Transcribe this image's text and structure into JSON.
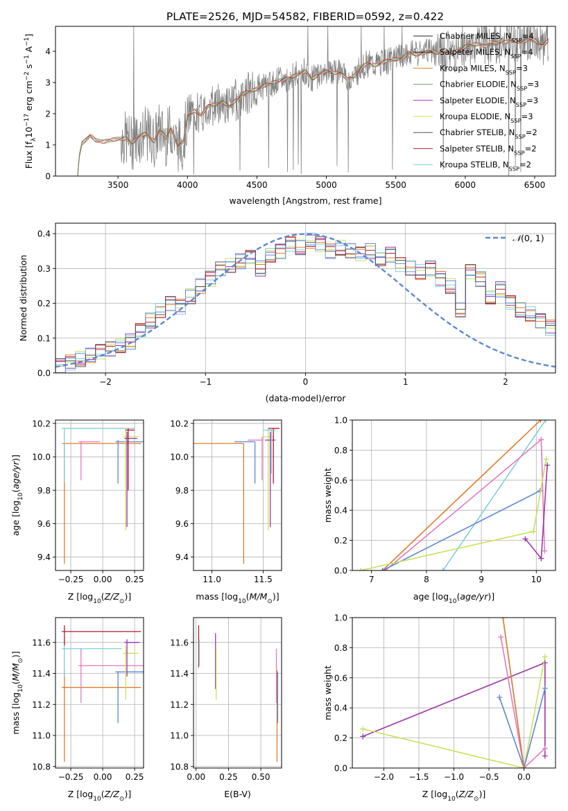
{
  "figure": {
    "title": "PLATE=2526, MJD=54582, FIBERID=0592, z=0.422"
  },
  "colors": {
    "chabrier_miles": "#1f1f1f",
    "salpeter_miles": "#1f1f1f",
    "kroupa_miles": "#e07b2a",
    "chabrier_elodie": "#6b9e6b",
    "salpeter_elodie": "#9b34a8",
    "kroupa_elodie": "#c8e05a",
    "chabrier_stelib": "#505050",
    "salpeter_stelib": "#b2182b",
    "kroupa_stelib": "#7ecfd6",
    "blue": "#5b86d6",
    "pink": "#e377c2",
    "data_grey": "#7f7f7f"
  },
  "chart_data": [
    {
      "id": "spectrum",
      "type": "line",
      "xlabel": "wavelength [Angstrom, rest frame]",
      "ylabel": "Flux [f",
      "ylabel_parts": [
        "Flux [f",
        "λ",
        "10",
        "−17",
        " erg cm",
        "−2",
        " s",
        "−1",
        " A",
        "−1",
        "]"
      ],
      "xlim": [
        3050,
        6650
      ],
      "ylim": [
        0,
        4.8
      ],
      "xticks": [
        3500,
        4000,
        4500,
        5000,
        5500,
        6000,
        6500
      ],
      "yticks": [
        0,
        1,
        2,
        3,
        4
      ],
      "legend": [
        {
          "label": "Chabrier MILES, N",
          "sub": "SSP",
          "suffix": "=4",
          "color_key": "chabrier_miles"
        },
        {
          "label": "Salpeter MILES, N",
          "sub": "SSP",
          "suffix": "=4",
          "color_key": "salpeter_miles"
        },
        {
          "label": "Kroupa MILES, N",
          "sub": "SSP",
          "suffix": "=3",
          "color_key": "kroupa_miles"
        },
        {
          "label": "Chabrier ELODIE, N",
          "sub": "SSP",
          "suffix": "=3",
          "color_key": "chabrier_elodie"
        },
        {
          "label": "Salpeter ELODIE, N",
          "sub": "SSP",
          "suffix": "=3",
          "color_key": "salpeter_elodie"
        },
        {
          "label": "Kroupa ELODIE, N",
          "sub": "SSP",
          "suffix": "=3",
          "color_key": "kroupa_elodie"
        },
        {
          "label": "Chabrier STELIB, N",
          "sub": "SSP",
          "suffix": "=2",
          "color_key": "chabrier_stelib"
        },
        {
          "label": "Salpeter STELIB, N",
          "sub": "SSP",
          "suffix": "=2",
          "color_key": "salpeter_stelib"
        },
        {
          "label": "Kroupa STELIB, N",
          "sub": "SSP",
          "suffix": "=2",
          "color_key": "kroupa_stelib"
        }
      ],
      "model_continuum": [
        [
          3210,
          0
        ],
        [
          3220,
          0.6
        ],
        [
          3240,
          1.05
        ],
        [
          3280,
          1.2
        ],
        [
          3300,
          1.3
        ],
        [
          3340,
          1.15
        ],
        [
          3400,
          1.1
        ],
        [
          3500,
          1.2
        ],
        [
          3560,
          1.2
        ],
        [
          3600,
          1.05
        ],
        [
          3650,
          1.3
        ],
        [
          3700,
          1.35
        ],
        [
          3760,
          1.1
        ],
        [
          3800,
          1.5
        ],
        [
          3850,
          1.2
        ],
        [
          3880,
          1.55
        ],
        [
          3930,
          1.0
        ],
        [
          3970,
          1.1
        ],
        [
          4000,
          1.9
        ],
        [
          4050,
          2.1
        ],
        [
          4100,
          1.95
        ],
        [
          4150,
          2.25
        ],
        [
          4200,
          2.3
        ],
        [
          4250,
          2.4
        ],
        [
          4300,
          2.2
        ],
        [
          4350,
          2.45
        ],
        [
          4400,
          2.65
        ],
        [
          4450,
          2.7
        ],
        [
          4500,
          2.8
        ],
        [
          4550,
          2.9
        ],
        [
          4600,
          2.95
        ],
        [
          4650,
          3.05
        ],
        [
          4700,
          3.1
        ],
        [
          4750,
          3.15
        ],
        [
          4800,
          3.3
        ],
        [
          4850,
          3.35
        ],
        [
          4900,
          3.1
        ],
        [
          4950,
          3.3
        ],
        [
          5000,
          3.35
        ],
        [
          5050,
          3.3
        ],
        [
          5100,
          3.35
        ],
        [
          5150,
          3.1
        ],
        [
          5200,
          3.2
        ],
        [
          5250,
          3.5
        ],
        [
          5300,
          3.6
        ],
        [
          5350,
          3.55
        ],
        [
          5400,
          3.65
        ],
        [
          5450,
          3.7
        ],
        [
          5500,
          3.75
        ],
        [
          5550,
          3.8
        ],
        [
          5600,
          3.95
        ],
        [
          5650,
          3.9
        ],
        [
          5700,
          3.95
        ],
        [
          5750,
          4.0
        ],
        [
          5800,
          3.95
        ],
        [
          5850,
          4.05
        ],
        [
          5900,
          3.9
        ],
        [
          5950,
          4.05
        ],
        [
          6000,
          4.15
        ],
        [
          6050,
          4.2
        ],
        [
          6100,
          4.25
        ],
        [
          6150,
          4.15
        ],
        [
          6200,
          4.25
        ],
        [
          6250,
          4.3
        ],
        [
          6300,
          4.3
        ],
        [
          6350,
          4.35
        ],
        [
          6400,
          4.3
        ],
        [
          6450,
          4.35
        ],
        [
          6500,
          4.35
        ],
        [
          6560,
          4.2
        ],
        [
          6600,
          4.35
        ]
      ]
    },
    {
      "id": "residuals",
      "type": "histogram",
      "xlabel": "(data-model)/error",
      "ylabel": "Normed distribution",
      "xlim": [
        -2.5,
        2.5
      ],
      "ylim": [
        0,
        0.43
      ],
      "xticks": [
        -2,
        -1,
        0,
        1,
        2
      ],
      "yticks": [
        0.0,
        0.1,
        0.2,
        0.3,
        0.4
      ],
      "legend": [
        {
          "label": "𝒩(0, 1)",
          "color_key": "blue"
        }
      ],
      "bin_width": 0.1,
      "hist_series_colors": [
        "kroupa_miles",
        "salpeter_elodie",
        "kroupa_elodie",
        "salpeter_stelib",
        "kroupa_stelib",
        "blue",
        "chabrier_stelib"
      ],
      "hist_values": [
        0.02,
        0.03,
        0.04,
        0.05,
        0.06,
        0.07,
        0.08,
        0.09,
        0.12,
        0.15,
        0.18,
        0.2,
        0.19,
        0.22,
        0.25,
        0.27,
        0.3,
        0.31,
        0.32,
        0.33,
        0.3,
        0.34,
        0.35,
        0.37,
        0.36,
        0.38,
        0.37,
        0.35,
        0.36,
        0.35,
        0.34,
        0.35,
        0.33,
        0.34,
        0.31,
        0.3,
        0.29,
        0.3,
        0.27,
        0.25,
        0.18,
        0.29,
        0.27,
        0.22,
        0.24,
        0.2,
        0.18,
        0.17,
        0.15,
        0.13
      ]
    },
    {
      "id": "age_vs_Z",
      "type": "scatter",
      "xlabel": "Z [log",
      "xlabel_parts": [
        "Z [log",
        "10",
        "(Z/Z",
        "⊙",
        ")]"
      ],
      "ylabel_parts": [
        "age  [log",
        "10",
        "(age/yr)]"
      ],
      "xlim": [
        -0.37,
        0.32
      ],
      "ylim": [
        9.32,
        10.22
      ],
      "xticks": [
        -0.25,
        0.0,
        0.25
      ],
      "xtick_labels": [
        "−0.25",
        "0.00",
        "0.25"
      ],
      "yticks": [
        9.4,
        9.6,
        9.8,
        10.0,
        10.2
      ],
      "points": [
        {
          "x": -0.3,
          "y": 10.08,
          "xerr": 0.6,
          "ylo": 9.36,
          "yhi": 10.08,
          "color_key": "kroupa_miles"
        },
        {
          "x": -0.3,
          "y": 10.17,
          "xerr": 0.55,
          "ylo": 9.85,
          "yhi": 10.17,
          "color_key": "kroupa_stelib"
        },
        {
          "x": -0.17,
          "y": 10.09,
          "xerr": 0.15,
          "ylo": 9.86,
          "yhi": 10.09,
          "color_key": "pink"
        },
        {
          "x": 0.12,
          "y": 10.09,
          "xerr": 0.2,
          "ylo": 9.84,
          "yhi": 10.1,
          "color_key": "blue"
        },
        {
          "x": 0.18,
          "y": 10.12,
          "xerr": 0.1,
          "ylo": 9.56,
          "yhi": 10.17,
          "color_key": "kroupa_elodie"
        },
        {
          "x": 0.19,
          "y": 10.11,
          "xerr": 0.08,
          "ylo": 9.58,
          "yhi": 10.15,
          "color_key": "salpeter_elodie"
        },
        {
          "x": 0.2,
          "y": 10.16,
          "xerr": 0.05,
          "ylo": 9.8,
          "yhi": 10.17,
          "color_key": "salpeter_stelib"
        }
      ]
    },
    {
      "id": "age_vs_mass",
      "type": "scatter",
      "xlabel_parts": [
        "mass [log",
        "10",
        "(M/M",
        "⊙",
        ")]"
      ],
      "xlim": [
        10.82,
        11.68
      ],
      "ylim": [
        9.32,
        10.22
      ],
      "xticks": [
        11.0,
        11.5
      ],
      "xtick_labels": [
        "11.0",
        "11.5"
      ],
      "yticks": [
        9.4,
        9.6,
        9.8,
        10.0,
        10.2
      ],
      "points": [
        {
          "x": 11.31,
          "y": 10.08,
          "xlo": 10.82,
          "xhi": 11.31,
          "ylo": 9.36,
          "yhi": 10.08,
          "color_key": "kroupa_miles"
        },
        {
          "x": 11.42,
          "y": 10.09,
          "xlo": 11.22,
          "xhi": 11.42,
          "ylo": 9.84,
          "yhi": 10.09,
          "color_key": "blue"
        },
        {
          "x": 11.49,
          "y": 10.1,
          "xlo": 11.35,
          "xhi": 11.5,
          "ylo": 9.86,
          "yhi": 10.12,
          "color_key": "pink"
        },
        {
          "x": 11.55,
          "y": 10.12,
          "xlo": 11.5,
          "xhi": 11.6,
          "ylo": 9.56,
          "yhi": 10.17,
          "color_key": "kroupa_elodie"
        },
        {
          "x": 11.57,
          "y": 10.1,
          "xlo": 11.52,
          "xhi": 11.62,
          "ylo": 9.58,
          "yhi": 10.15,
          "color_key": "salpeter_elodie"
        },
        {
          "x": 11.6,
          "y": 10.17,
          "xlo": 11.55,
          "xhi": 11.66,
          "ylo": 9.84,
          "yhi": 10.17,
          "color_key": "salpeter_stelib"
        },
        {
          "x": 11.58,
          "y": 10.16,
          "xlo": 11.5,
          "xhi": 11.62,
          "ylo": 9.9,
          "yhi": 10.17,
          "color_key": "kroupa_stelib"
        }
      ]
    },
    {
      "id": "weight_vs_age",
      "type": "line",
      "xlabel_parts": [
        "age  [log",
        "10",
        "(age/yr)]"
      ],
      "ylabel": "mass weight",
      "xlim": [
        6.65,
        10.35
      ],
      "ylim": [
        0,
        1.0
      ],
      "xticks": [
        7,
        8,
        9,
        10
      ],
      "yticks": [
        0.0,
        0.2,
        0.4,
        0.6,
        0.8,
        1.0
      ],
      "series": [
        {
          "color_key": "kroupa_miles",
          "x": [
            7.2,
            10.08
          ],
          "y": [
            0.0,
            1.0
          ]
        },
        {
          "color_key": "kroupa_stelib",
          "x": [
            8.3,
            10.17
          ],
          "y": [
            0.0,
            1.0
          ]
        },
        {
          "color_key": "pink",
          "x": [
            7.25,
            10.09,
            10.15
          ],
          "y": [
            0.0,
            0.87,
            0.13
          ]
        },
        {
          "color_key": "blue",
          "x": [
            7.2,
            10.07
          ],
          "y": [
            0.0,
            0.53
          ]
        },
        {
          "color_key": "kroupa_elodie",
          "x": [
            6.8,
            9.95,
            10.18
          ],
          "y": [
            0.0,
            0.26,
            0.74
          ]
        },
        {
          "color_key": "salpeter_elodie",
          "x": [
            9.8,
            10.09,
            10.2
          ],
          "y": [
            0.21,
            0.08,
            0.7
          ]
        }
      ]
    },
    {
      "id": "mass_vs_Z",
      "type": "scatter",
      "xlabel_parts": [
        "Z [log",
        "10",
        "(Z/Z",
        "⊙",
        ")]"
      ],
      "ylabel_parts": [
        "mass [log",
        "10",
        "(M/M",
        "⊙",
        ")]"
      ],
      "xlim": [
        -0.37,
        0.32
      ],
      "ylim": [
        10.79,
        11.76
      ],
      "xticks": [
        -0.25,
        0.0,
        0.25
      ],
      "xtick_labels": [
        "−0.25",
        "0.00",
        "0.25"
      ],
      "yticks": [
        10.8,
        11.0,
        11.2,
        11.4,
        11.6
      ],
      "points": [
        {
          "x": -0.3,
          "y": 11.31,
          "xerr": 0.6,
          "ylo": 10.83,
          "yhi": 11.42,
          "color_key": "kroupa_miles"
        },
        {
          "x": -0.3,
          "y": 11.56,
          "xerr": 0.45,
          "ylo": 11.38,
          "yhi": 11.63,
          "color_key": "kroupa_stelib"
        },
        {
          "x": -0.17,
          "y": 11.45,
          "xerr": 0.6,
          "ylo": 11.21,
          "yhi": 11.56,
          "color_key": "pink"
        },
        {
          "x": 0.12,
          "y": 11.41,
          "xerr": 0.3,
          "ylo": 11.08,
          "yhi": 11.41,
          "color_key": "blue"
        },
        {
          "x": 0.18,
          "y": 11.53,
          "xerr": 0.1,
          "ylo": 11.23,
          "yhi": 11.58,
          "color_key": "kroupa_elodie"
        },
        {
          "x": 0.19,
          "y": 11.6,
          "xerr": 0.1,
          "ylo": 11.38,
          "yhi": 11.62,
          "color_key": "salpeter_elodie"
        },
        {
          "x": -0.3,
          "y": 11.67,
          "xerr": 0.6,
          "ylo": 11.58,
          "yhi": 11.71,
          "color_key": "salpeter_stelib"
        }
      ]
    },
    {
      "id": "mass_vs_ebv",
      "type": "scatter",
      "xlabel": "E(B-V)",
      "xlim": [
        -0.02,
        0.66
      ],
      "ylim": [
        10.79,
        11.76
      ],
      "xticks": [
        0.0,
        0.25,
        0.5
      ],
      "xtick_labels": [
        "0.00",
        "0.25",
        "0.50"
      ],
      "yticks": [
        10.8,
        11.0,
        11.2,
        11.4,
        11.6
      ],
      "points": [
        {
          "x": 0.02,
          "ylo": 11.44,
          "yhi": 11.71,
          "color_key": "salpeter_stelib"
        },
        {
          "x": 0.025,
          "ylo": 11.45,
          "yhi": 11.62,
          "color_key": "kroupa_stelib"
        },
        {
          "x": 0.15,
          "ylo": 11.3,
          "yhi": 11.66,
          "color_key": "salpeter_elodie"
        },
        {
          "x": 0.155,
          "ylo": 11.23,
          "yhi": 11.57,
          "color_key": "kroupa_elodie"
        },
        {
          "x": 0.62,
          "ylo": 11.21,
          "yhi": 11.56,
          "color_key": "pink"
        },
        {
          "x": 0.625,
          "ylo": 10.83,
          "yhi": 11.42,
          "color_key": "kroupa_miles"
        },
        {
          "x": 0.63,
          "ylo": 11.08,
          "yhi": 11.41,
          "color_key": "blue"
        }
      ]
    },
    {
      "id": "weight_vs_Z",
      "type": "line",
      "xlabel_parts": [
        "Z [log",
        "10",
        "(Z/Z",
        "⊙",
        ")]"
      ],
      "ylabel": "mass weight",
      "xlim": [
        -2.45,
        0.45
      ],
      "ylim": [
        0,
        1.0
      ],
      "xticks": [
        -2.0,
        -1.5,
        -1.0,
        -0.5,
        0.0
      ],
      "xtick_labels": [
        "−2.0",
        "−1.5",
        "−1.0",
        "−0.5",
        "0.0"
      ],
      "yticks": [
        0.0,
        0.2,
        0.4,
        0.6,
        0.8,
        1.0
      ],
      "series": [
        {
          "color_key": "salpeter_elodie",
          "x": [
            -2.3,
            0.3,
            0.3
          ],
          "y": [
            0.21,
            0.7,
            0.08
          ]
        },
        {
          "color_key": "kroupa_elodie",
          "x": [
            -2.3,
            0.0,
            0.3
          ],
          "y": [
            0.26,
            0.0,
            0.74
          ]
        },
        {
          "color_key": "kroupa_stelib",
          "x": [
            -0.3,
            0.0
          ],
          "y": [
            1.0,
            0.0
          ]
        },
        {
          "color_key": "pink",
          "x": [
            -0.33,
            0.0,
            0.3
          ],
          "y": [
            0.87,
            0.0,
            0.13
          ]
        },
        {
          "color_key": "blue",
          "x": [
            -0.35,
            0.0,
            0.3
          ],
          "y": [
            0.47,
            0.0,
            0.53
          ]
        },
        {
          "color_key": "kroupa_miles",
          "x": [
            -0.3,
            0.0
          ],
          "y": [
            1.0,
            0.0
          ]
        }
      ]
    }
  ]
}
